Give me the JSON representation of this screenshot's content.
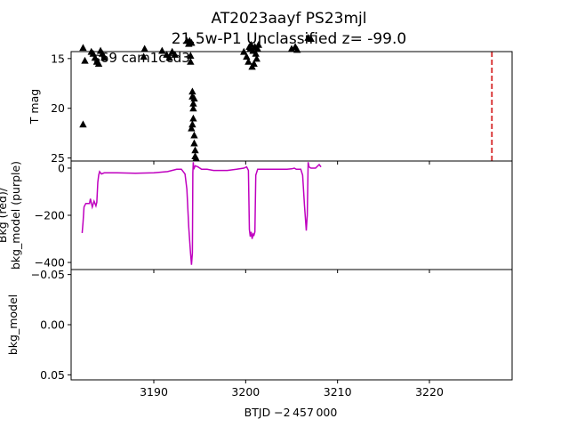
{
  "chart_data": {
    "type": "scatter",
    "title_line1": "AT2023aayf  PS23mjl",
    "title_line2": "21.5w-P1 Unclassified z= -99.0",
    "xlabel": "BTJD −2 457 000",
    "xlim": [
      3181.0,
      3229.0
    ],
    "xticks": [
      3190,
      3200,
      3210,
      3220
    ],
    "colors": {
      "points": "#000000",
      "marker": "#d62728",
      "bkg_model": "#bf00bf"
    },
    "panels": [
      {
        "name": "lightcurve",
        "ylabel": "T mag",
        "ylim": [
          25.3,
          14.3
        ],
        "yticks": [
          15,
          20,
          25
        ],
        "annotation": "s69 cam1ccd3",
        "vline_x": 3226.8,
        "points": [
          [
            3182.3,
            13.9
          ],
          [
            3182.3,
            21.6
          ],
          [
            3182.5,
            15.2
          ],
          [
            3183.2,
            14.3
          ],
          [
            3183.4,
            14.5
          ],
          [
            3183.6,
            14.9
          ],
          [
            3183.8,
            15.3
          ],
          [
            3184.0,
            15.5
          ],
          [
            3184.2,
            14.2
          ],
          [
            3184.4,
            14.5
          ],
          [
            3184.6,
            14.9
          ],
          [
            3188.9,
            14.8
          ],
          [
            3189.0,
            14.0
          ],
          [
            3190.9,
            14.2
          ],
          [
            3191.4,
            14.6
          ],
          [
            3191.7,
            14.9
          ],
          [
            3192.0,
            14.3
          ],
          [
            3192.3,
            14.6
          ],
          [
            3193.6,
            13.2
          ],
          [
            3193.8,
            13.5
          ],
          [
            3193.9,
            13.2
          ],
          [
            3194.0,
            14.7
          ],
          [
            3194.0,
            15.3
          ],
          [
            3194.1,
            13.4
          ],
          [
            3194.1,
            22.0
          ],
          [
            3194.2,
            21.6
          ],
          [
            3194.2,
            18.3
          ],
          [
            3194.2,
            18.8
          ],
          [
            3194.3,
            19.5
          ],
          [
            3194.3,
            20.0
          ],
          [
            3194.3,
            21.0
          ],
          [
            3194.4,
            22.7
          ],
          [
            3194.4,
            23.5
          ],
          [
            3194.5,
            24.2
          ],
          [
            3194.5,
            24.8
          ],
          [
            3194.6,
            25.0
          ],
          [
            3194.4,
            19.0
          ],
          [
            3199.8,
            14.3
          ],
          [
            3200.1,
            14.8
          ],
          [
            3200.3,
            15.3
          ],
          [
            3200.4,
            13.8
          ],
          [
            3200.5,
            14.0
          ],
          [
            3200.6,
            13.6
          ],
          [
            3200.7,
            15.8
          ],
          [
            3200.8,
            14.2
          ],
          [
            3200.9,
            15.5
          ],
          [
            3201.0,
            13.8
          ],
          [
            3201.1,
            14.5
          ],
          [
            3201.2,
            15.0
          ],
          [
            3201.3,
            14.0
          ],
          [
            3201.4,
            13.6
          ],
          [
            3205.0,
            14.0
          ],
          [
            3205.4,
            13.8
          ],
          [
            3205.6,
            14.1
          ],
          [
            3206.8,
            12.9
          ],
          [
            3207.1,
            13.0
          ]
        ]
      },
      {
        "name": "bkg",
        "ylabel_line1": "Bkg (red)/",
        "ylabel_line2": "bkg_model (purple)",
        "ylim": [
          -430,
          30
        ],
        "yticks": [
          0,
          -200,
          -400
        ],
        "ytick_labels": [
          "0",
          "−200",
          "−400"
        ],
        "series": [
          {
            "segments": [
              [
                [
                  3182.2,
                  -275
                ],
                [
                  3182.3,
                  -230
                ],
                [
                  3182.4,
                  -165
                ],
                [
                  3182.6,
                  -150
                ],
                [
                  3183.0,
                  -150
                ],
                [
                  3183.1,
                  -130
                ],
                [
                  3183.3,
                  -165
                ],
                [
                  3183.5,
                  -140
                ],
                [
                  3183.7,
                  -160
                ],
                [
                  3183.8,
                  -145
                ],
                [
                  3183.9,
                  -60
                ],
                [
                  3184.0,
                  -30
                ],
                [
                  3184.1,
                  -15
                ],
                [
                  3184.3,
                  -25
                ],
                [
                  3184.6,
                  -20
                ],
                [
                  3186.0,
                  -20
                ],
                [
                  3188.0,
                  -22
                ],
                [
                  3190.0,
                  -20
                ],
                [
                  3191.5,
                  -15
                ],
                [
                  3192.5,
                  -5
                ],
                [
                  3193.0,
                  -5
                ],
                [
                  3193.4,
                  -25
                ],
                [
                  3193.6,
                  -90
                ],
                [
                  3193.8,
                  -250
                ],
                [
                  3194.0,
                  -360
                ],
                [
                  3194.1,
                  -410
                ],
                [
                  3194.2,
                  -360
                ],
                [
                  3194.25,
                  -20
                ],
                [
                  3194.3,
                  25
                ],
                [
                  3194.35,
                  -5
                ],
                [
                  3194.5,
                  10
                ],
                [
                  3194.8,
                  5
                ],
                [
                  3195.2,
                  -5
                ],
                [
                  3195.8,
                  -5
                ],
                [
                  3196.5,
                  -10
                ],
                [
                  3198.0,
                  -10
                ],
                [
                  3199.0,
                  -5
                ],
                [
                  3199.8,
                  0
                ],
                [
                  3200.1,
                  5
                ],
                [
                  3200.3,
                  -10
                ],
                [
                  3200.4,
                  -260
                ],
                [
                  3200.5,
                  -290
                ],
                [
                  3200.6,
                  -270
                ],
                [
                  3200.7,
                  -300
                ],
                [
                  3200.8,
                  -280
                ],
                [
                  3200.9,
                  -285
                ],
                [
                  3201.0,
                  -270
                ],
                [
                  3201.1,
                  -30
                ],
                [
                  3201.3,
                  -5
                ],
                [
                  3202.0,
                  -5
                ],
                [
                  3203.0,
                  -5
                ],
                [
                  3204.5,
                  -5
                ],
                [
                  3205.0,
                  -3
                ],
                [
                  3205.3,
                  0
                ],
                [
                  3205.5,
                  -5
                ],
                [
                  3206.0,
                  -5
                ],
                [
                  3206.2,
                  -30
                ],
                [
                  3206.4,
                  -160
                ],
                [
                  3206.6,
                  -265
                ],
                [
                  3206.7,
                  -200
                ],
                [
                  3206.8,
                  25
                ],
                [
                  3206.9,
                  5
                ],
                [
                  3207.1,
                  0
                ],
                [
                  3207.6,
                  0
                ],
                [
                  3208.0,
                  15
                ],
                [
                  3208.2,
                  5
                ]
              ]
            ]
          }
        ]
      },
      {
        "name": "bkg_model",
        "ylabel_line1": "bkg_model",
        "ylim": [
          0.055,
          -0.055
        ],
        "yticks": [
          -0.05,
          0.0,
          0.05
        ],
        "ytick_labels": [
          "−0.05",
          "0.00",
          "0.05"
        ]
      }
    ]
  }
}
